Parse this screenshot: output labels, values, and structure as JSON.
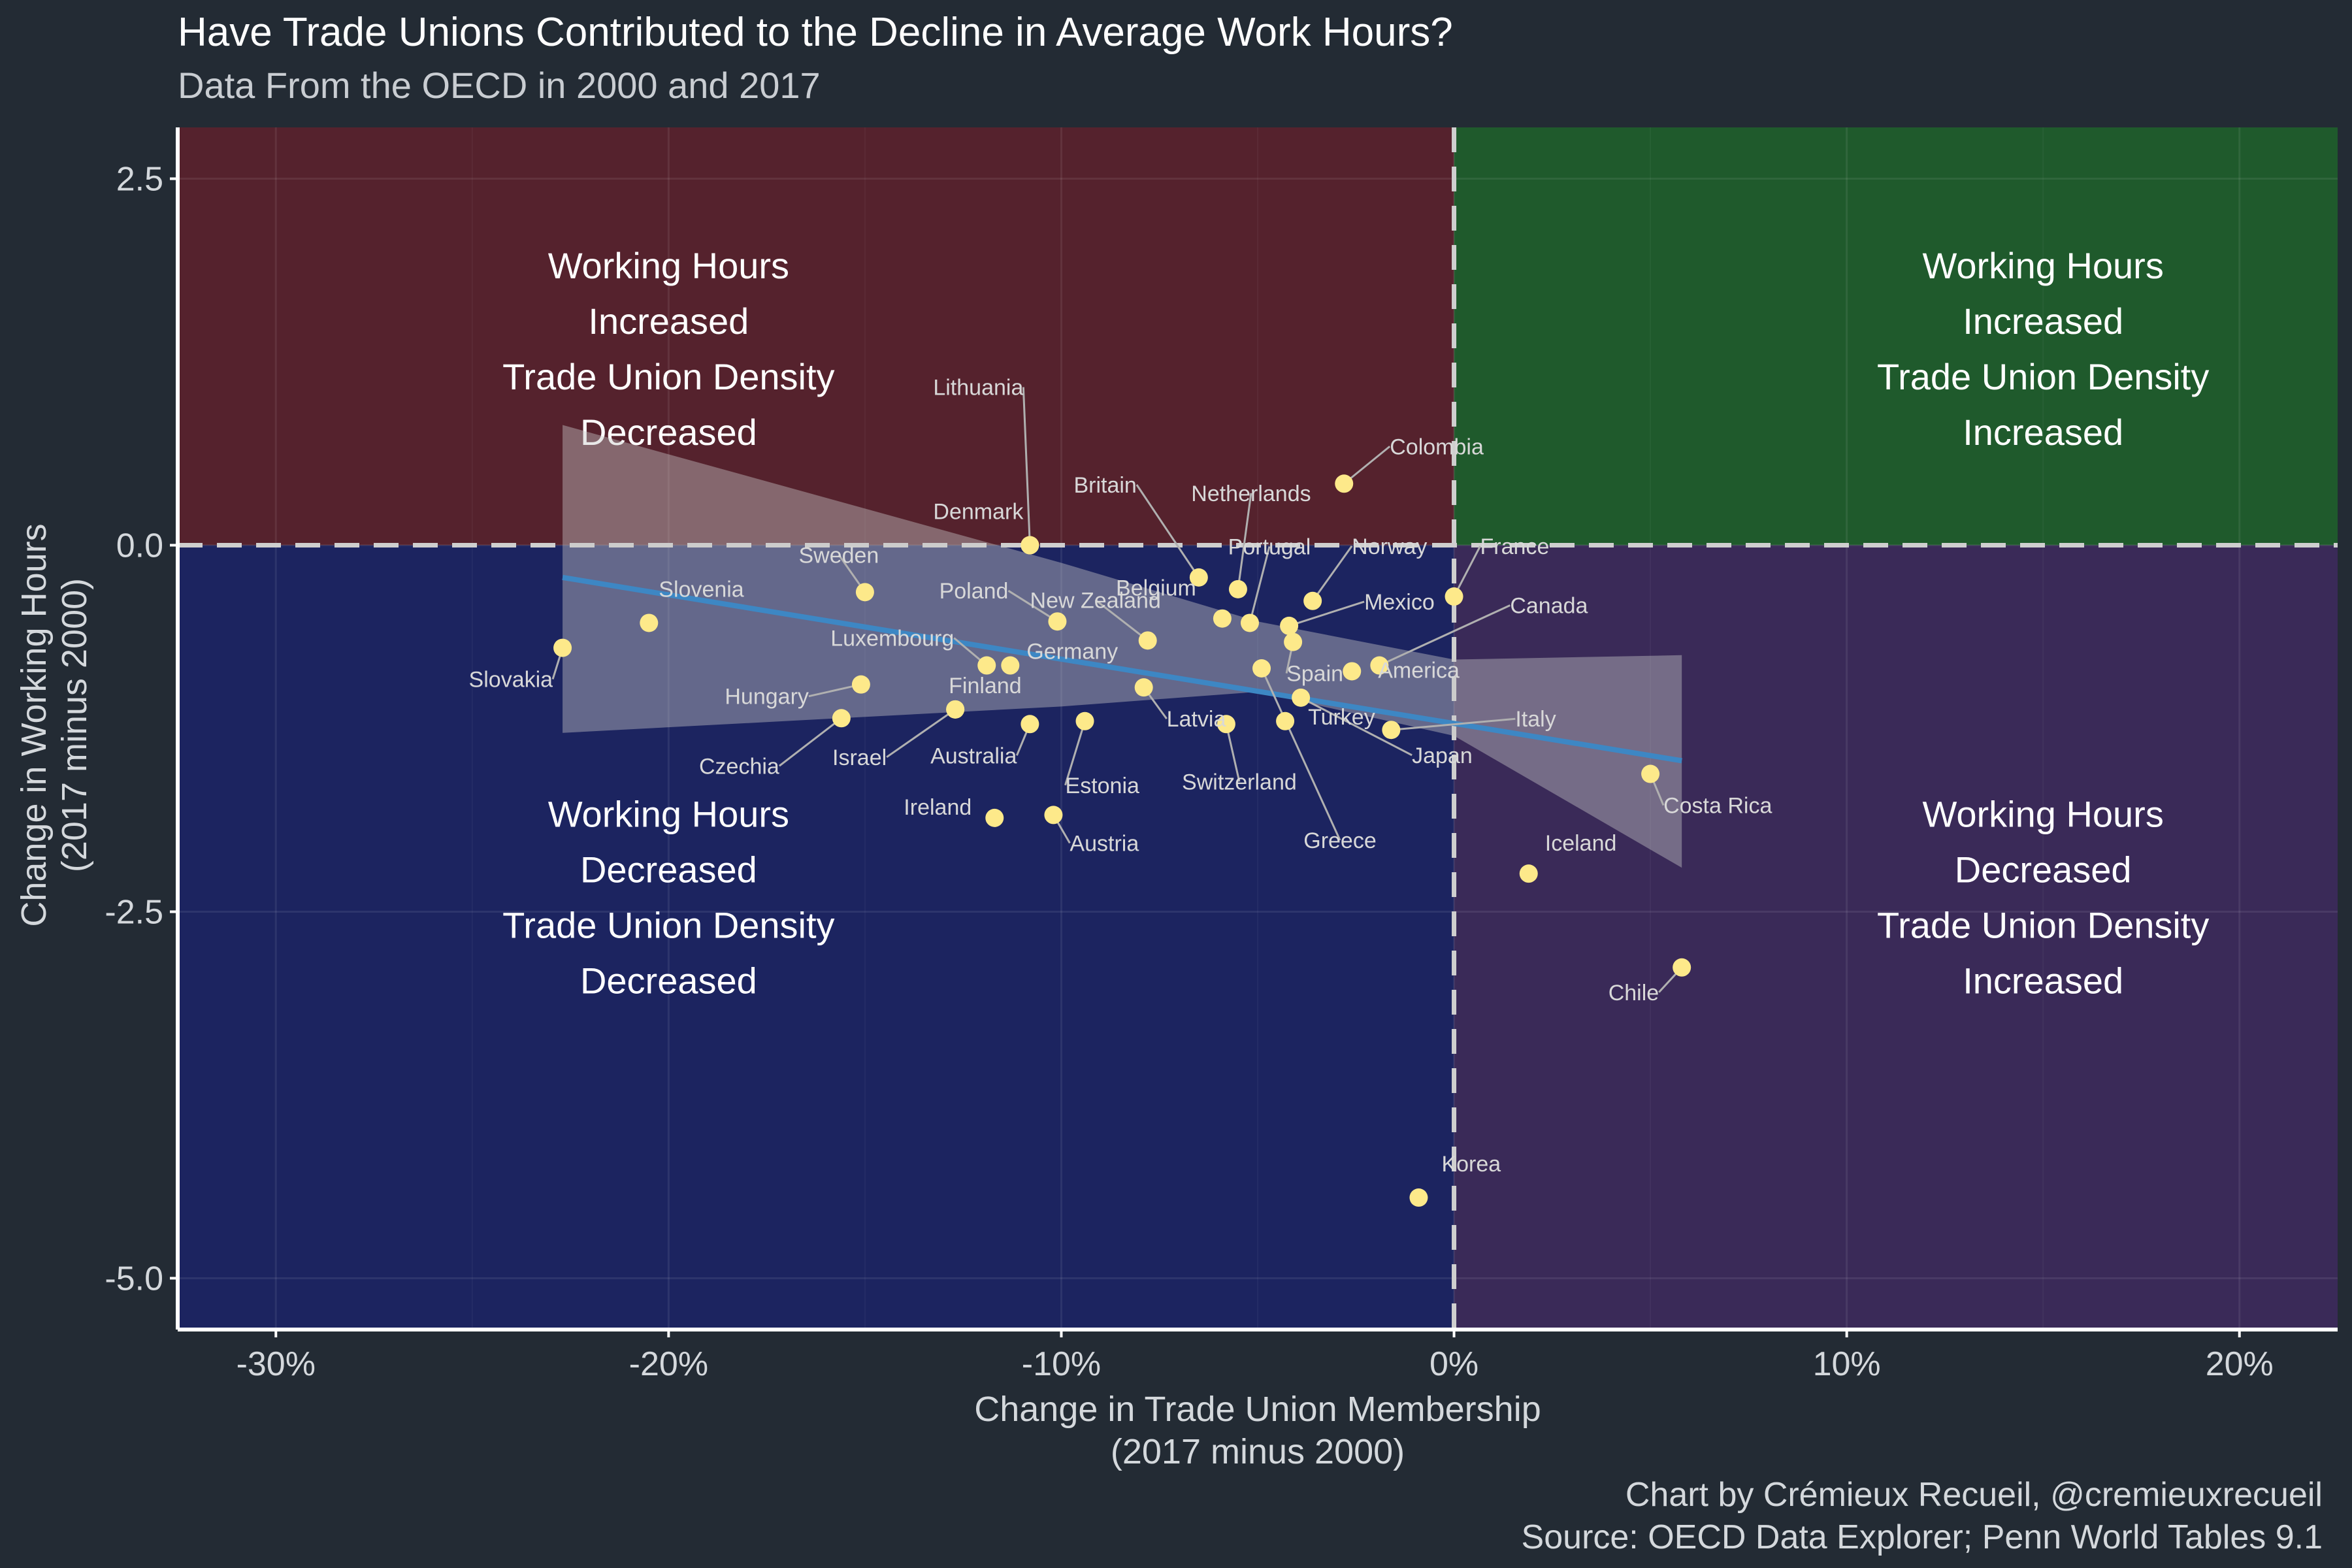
{
  "chart_data": {
    "type": "scatter",
    "title": "Have Trade Unions Contributed to the Decline in Average Work Hours?",
    "subtitle": "Data From the OECD in 2000 and 2017",
    "xlabel_line1": "Change in Trade Union Membership",
    "xlabel_line2": "(2017 minus 2000)",
    "ylabel_line1": "Change in Working Hours",
    "ylabel_line2": "(2017 minus 2000)",
    "xlim": [
      -32.5,
      22.5
    ],
    "ylim": [
      -5.35,
      2.85
    ],
    "x_ticks": [
      -30,
      -20,
      -10,
      0,
      10,
      20
    ],
    "x_tick_labels": [
      "-30%",
      "-20%",
      "-10%",
      "0%",
      "10%",
      "20%"
    ],
    "y_ticks": [
      2.5,
      0,
      -2.5,
      -5
    ],
    "y_tick_labels": [
      "2.5",
      "0.0",
      "-2.5",
      "-5.0"
    ],
    "grid": true,
    "quadrant_colors": {
      "top_left": "#55222d",
      "top_right": "#1f5a2c",
      "bottom_left": "#1c2460",
      "bottom_right": "#3a2a58"
    },
    "point_color": "#fde98a",
    "fit_color": "#3d87c4",
    "quadrant_labels": {
      "top_left": [
        "Working Hours",
        "Increased",
        "Trade Union Density",
        "Decreased"
      ],
      "top_right": [
        "Working Hours",
        "Increased",
        "Trade Union Density",
        "Increased"
      ],
      "bottom_left": [
        "Working Hours",
        "Decreased",
        "Trade Union Density",
        "Decreased"
      ],
      "bottom_right": [
        "Working Hours",
        "Decreased",
        "Trade Union Density",
        "Increased"
      ]
    },
    "fit_line": {
      "x": [
        -22.7,
        5.8
      ],
      "y": [
        -0.22,
        -1.47
      ]
    },
    "fit_band": {
      "x": [
        -22.7,
        -10,
        -5,
        0,
        5.8
      ],
      "upper": [
        0.82,
        -0.12,
        -0.52,
        -0.78,
        -0.75
      ],
      "lower": [
        -1.28,
        -1.1,
        -1.0,
        -1.3,
        -2.2
      ]
    },
    "points": [
      {
        "label": "Colombia",
        "x": -2.8,
        "y": 0.42
      },
      {
        "label": "Lithuania",
        "x": -10.8,
        "y": 0.0
      },
      {
        "label": "Denmark",
        "x": -10.8,
        "y": 0.0
      },
      {
        "label": "Britain",
        "x": -6.5,
        "y": -0.22
      },
      {
        "label": "Netherlands",
        "x": -5.5,
        "y": -0.3
      },
      {
        "label": "Belgium",
        "x": -5.9,
        "y": -0.5
      },
      {
        "label": "Portugal",
        "x": -5.2,
        "y": -0.53
      },
      {
        "label": "Norway",
        "x": -3.6,
        "y": -0.38
      },
      {
        "label": "France",
        "x": 0.0,
        "y": -0.35
      },
      {
        "label": "Mexico",
        "x": -4.2,
        "y": -0.55
      },
      {
        "label": "Canada",
        "x": -1.9,
        "y": -0.82
      },
      {
        "label": "America",
        "x": -2.6,
        "y": -0.86
      },
      {
        "label": "Spain",
        "x": -4.1,
        "y": -0.66
      },
      {
        "label": "New Zealand",
        "x": -7.8,
        "y": -0.65
      },
      {
        "label": "Sweden",
        "x": -15.0,
        "y": -0.32
      },
      {
        "label": "Poland",
        "x": -10.1,
        "y": -0.52
      },
      {
        "label": "Slovenia",
        "x": -20.5,
        "y": -0.53
      },
      {
        "label": "Slovakia",
        "x": -22.7,
        "y": -0.7
      },
      {
        "label": "Luxembourg",
        "x": -11.9,
        "y": -0.82
      },
      {
        "label": "Germany",
        "x": -11.3,
        "y": -0.82
      },
      {
        "label": "Hungary",
        "x": -15.1,
        "y": -0.95
      },
      {
        "label": "Finland",
        "x": -12.7,
        "y": -1.12
      },
      {
        "label": "Latvia",
        "x": -7.9,
        "y": -0.97
      },
      {
        "label": "Czechia",
        "x": -15.6,
        "y": -1.18
      },
      {
        "label": "Israel",
        "x": -12.7,
        "y": -1.12
      },
      {
        "label": "Australia",
        "x": -10.8,
        "y": -1.22
      },
      {
        "label": "Estonia",
        "x": -9.4,
        "y": -1.2
      },
      {
        "label": "Switzerland",
        "x": -5.8,
        "y": -1.22
      },
      {
        "label": "Turkey",
        "x": -4.3,
        "y": -1.2
      },
      {
        "label": "Italy",
        "x": -1.6,
        "y": -1.26
      },
      {
        "label": "Japan",
        "x": -3.9,
        "y": -1.04
      },
      {
        "label": "Greece",
        "x": -4.9,
        "y": -0.84
      },
      {
        "label": "Costa Rica",
        "x": 5.0,
        "y": -1.56
      },
      {
        "label": "Ireland",
        "x": -11.7,
        "y": -1.86
      },
      {
        "label": "Austria",
        "x": -10.2,
        "y": -1.84
      },
      {
        "label": "Iceland",
        "x": 1.9,
        "y": -2.24
      },
      {
        "label": "Chile",
        "x": 5.8,
        "y": -2.88
      },
      {
        "label": "Korea",
        "x": -0.9,
        "y": -4.45
      }
    ],
    "caption_line1": "Chart by Crémieux Recueil, @cremieuxrecueil",
    "caption_line2": "Source: OECD Data Explorer; Penn World Tables 9.1"
  }
}
